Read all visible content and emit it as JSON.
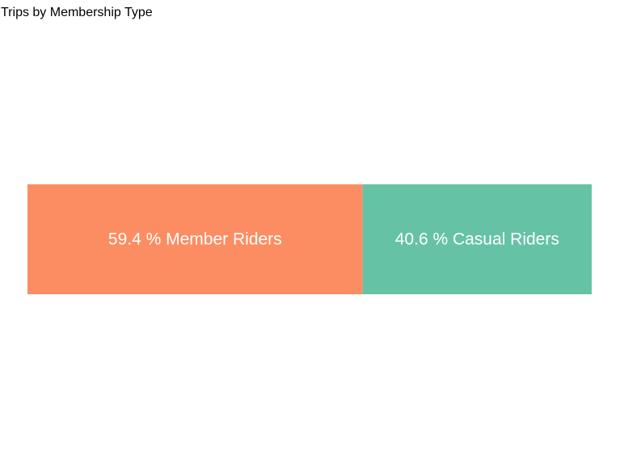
{
  "chart_data": {
    "type": "bar",
    "title": "Trips by Membership Type",
    "orientation": "horizontal-stacked",
    "unit": "%",
    "categories": [
      "Member Riders",
      "Casual Riders"
    ],
    "values": [
      59.4,
      40.6
    ],
    "labels": [
      "59.4 % Member Riders",
      "40.6 % Casual Riders"
    ],
    "colors": [
      "#FC8D62",
      "#66C2A5"
    ],
    "grid": false,
    "legend": "none"
  }
}
